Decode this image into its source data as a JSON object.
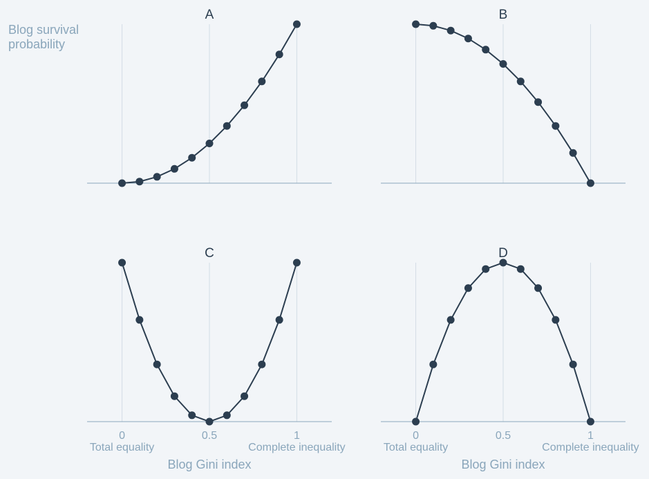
{
  "figure": {
    "ylabel_lines": [
      "Blog survival",
      "probability"
    ],
    "colors": {
      "background": "#f2f5f8",
      "series": "#2c3e50",
      "axis_text": "#8aa6bb",
      "grid": "#d3dde6"
    }
  },
  "chart_data": [
    {
      "type": "line",
      "title": "A",
      "xlabel": "Blog Gini index",
      "xticks": [
        "0",
        "0.5",
        "1"
      ],
      "xtick_values": [
        0,
        0.5,
        1
      ],
      "xtick_sublabels": [
        "Total equality",
        "Complete inequality"
      ],
      "xlim": [
        -0.2,
        1.2
      ],
      "ylim": [
        0,
        1
      ],
      "grid": "vertical",
      "x": [
        0,
        0.1,
        0.2,
        0.3,
        0.4,
        0.5,
        0.6,
        0.7,
        0.8,
        0.9,
        1.0
      ],
      "y": [
        0.0,
        0.01,
        0.04,
        0.09,
        0.16,
        0.25,
        0.36,
        0.49,
        0.64,
        0.81,
        1.0
      ]
    },
    {
      "type": "line",
      "title": "B",
      "xlabel": "Blog Gini index",
      "xticks": [
        "0",
        "0.5",
        "1"
      ],
      "xtick_values": [
        0,
        0.5,
        1
      ],
      "xtick_sublabels": [
        "Total equality",
        "Complete inequality"
      ],
      "xlim": [
        -0.2,
        1.2
      ],
      "ylim": [
        0,
        1
      ],
      "grid": "vertical",
      "x": [
        0,
        0.1,
        0.2,
        0.3,
        0.4,
        0.5,
        0.6,
        0.7,
        0.8,
        0.9,
        1.0
      ],
      "y": [
        1.0,
        0.99,
        0.96,
        0.91,
        0.84,
        0.75,
        0.64,
        0.51,
        0.36,
        0.19,
        0.0
      ]
    },
    {
      "type": "line",
      "title": "C",
      "xlabel": "Blog Gini index",
      "xticks": [
        "0",
        "0.5",
        "1"
      ],
      "xtick_values": [
        0,
        0.5,
        1
      ],
      "xtick_sublabels": [
        "Total equality",
        "Complete inequality"
      ],
      "xlim": [
        -0.2,
        1.2
      ],
      "ylim": [
        0,
        1
      ],
      "grid": "vertical",
      "x": [
        0,
        0.1,
        0.2,
        0.3,
        0.4,
        0.5,
        0.6,
        0.7,
        0.8,
        0.9,
        1.0
      ],
      "y": [
        1.0,
        0.64,
        0.36,
        0.16,
        0.04,
        0.0,
        0.04,
        0.16,
        0.36,
        0.64,
        1.0
      ]
    },
    {
      "type": "line",
      "title": "D",
      "xlabel": "Blog Gini index",
      "xticks": [
        "0",
        "0.5",
        "1"
      ],
      "xtick_values": [
        0,
        0.5,
        1
      ],
      "xtick_sublabels": [
        "Total equality",
        "Complete inequality"
      ],
      "xlim": [
        -0.2,
        1.2
      ],
      "ylim": [
        0,
        1
      ],
      "grid": "vertical",
      "x": [
        0,
        0.1,
        0.2,
        0.3,
        0.4,
        0.5,
        0.6,
        0.7,
        0.8,
        0.9,
        1.0
      ],
      "y": [
        0.0,
        0.36,
        0.64,
        0.84,
        0.96,
        1.0,
        0.96,
        0.84,
        0.64,
        0.36,
        0.0
      ]
    }
  ]
}
